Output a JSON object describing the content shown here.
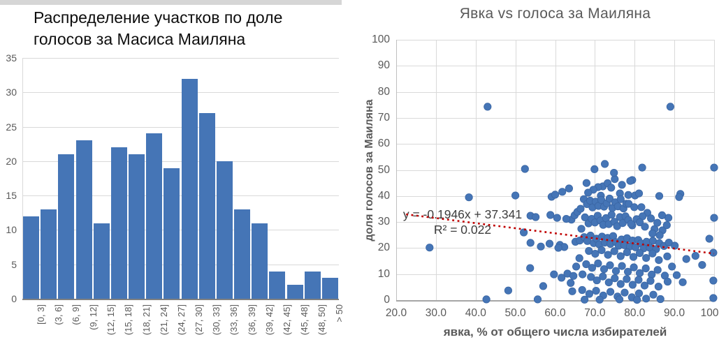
{
  "page": {
    "background": "#ffffff"
  },
  "colors": {
    "series_blue": "#4575b6",
    "point_edge": "#3a66a4",
    "gridline": "#d9d9d9",
    "axis_gray": "#808080",
    "label_gray": "#595959",
    "trend_red": "#c00000",
    "hist_title_color": "#0d0d0d"
  },
  "chart_data": [
    {
      "type": "bar",
      "title_lines": [
        "Распределение участков по доле",
        "голосов за Масиса Маиляна"
      ],
      "categories": [
        "[0, 3]",
        "(3, 6]",
        "(6, 9]",
        "(9, 12]",
        "(12, 15]",
        "(15, 18]",
        "(18, 21]",
        "(21, 24]",
        "(24, 27]",
        "(27, 30]",
        "(30, 33]",
        "(33, 36]",
        "(36, 39]",
        "(39, 42]",
        "(42, 45]",
        "(45, 48]",
        "(48, 50]",
        "> 50"
      ],
      "values": [
        12,
        13,
        21,
        23,
        11,
        22,
        21,
        24,
        19,
        32,
        27,
        20,
        13,
        11,
        4,
        2,
        4,
        3
      ],
      "xlabel": "",
      "ylabel": "",
      "y_ticks": [
        0,
        5,
        10,
        15,
        20,
        25,
        30,
        35
      ],
      "ylim": [
        0,
        35
      ],
      "grid": "horizontal",
      "legend": "none"
    },
    {
      "type": "scatter",
      "title": "Явка vs голоса за Маиляна",
      "xlabel": "явка, % от общего числа избирателей",
      "ylabel": "доля голосов за Маиляна",
      "xlim": [
        20,
        100
      ],
      "ylim": [
        0,
        100
      ],
      "x_tick_values": [
        20,
        30,
        40,
        50,
        60,
        70,
        80,
        90,
        100
      ],
      "x_tick_labels": [
        "20.0",
        "30.0",
        "40.0",
        "50.0",
        "60.0",
        "70.0",
        "80.0",
        "90.0",
        "100.0"
      ],
      "y_tick_values": [
        0,
        10,
        20,
        30,
        40,
        50,
        60,
        70,
        80,
        90,
        100
      ],
      "y_tick_labels": [
        "0",
        "10",
        "20",
        "30",
        "40",
        "50",
        "60",
        "70",
        "80",
        "90",
        "100"
      ],
      "grid": "both",
      "legend": "none",
      "trendline": {
        "equation": "y = -0,1946x + 37.341",
        "equation_display": "y = -0.1946x + 37.341",
        "r2": "R² = 0.022",
        "slope": -0.1946,
        "intercept": 37.341,
        "x_start": 22.5,
        "x_end": 100,
        "style": "dotted"
      },
      "points": [
        [
          28.4,
          20.2
        ],
        [
          38.3,
          39.5
        ],
        [
          43,
          74.3
        ],
        [
          42.7,
          0.3
        ],
        [
          48.2,
          3.7
        ],
        [
          50,
          40.2
        ],
        [
          52.4,
          50.4
        ],
        [
          52.1,
          26
        ],
        [
          53.8,
          32.4
        ],
        [
          55.1,
          31.9
        ],
        [
          53.8,
          22
        ],
        [
          53.7,
          12.3
        ],
        [
          55.6,
          0.3
        ],
        [
          57,
          5.4
        ],
        [
          56.4,
          20.6
        ],
        [
          58.8,
          32.7
        ],
        [
          58.6,
          21.7
        ],
        [
          59.1,
          39.7
        ],
        [
          59.7,
          9.9
        ],
        [
          89,
          74.3
        ],
        [
          91.5,
          40.8
        ],
        [
          91.2,
          39.6
        ],
        [
          100,
          50.9
        ],
        [
          100,
          31.6
        ],
        [
          98.8,
          23.6
        ],
        [
          99.8,
          18.2
        ],
        [
          99.8,
          7.5
        ],
        [
          99.8,
          0.8
        ],
        [
          97,
          13.5
        ],
        [
          95.3,
          17
        ],
        [
          93,
          15.8
        ],
        [
          60,
          40.5
        ],
        [
          61.8,
          41.6
        ],
        [
          63.5,
          42.9
        ],
        [
          60.5,
          31.6
        ],
        [
          61.2,
          21.2
        ],
        [
          62.3,
          20.4
        ],
        [
          63.1,
          10.2
        ],
        [
          61.6,
          8.6
        ],
        [
          63.9,
          6.6
        ],
        [
          64.6,
          9.3
        ],
        [
          64.1,
          30.9
        ],
        [
          64.9,
          32.6
        ],
        [
          65.6,
          33.9
        ],
        [
          66.4,
          35.1
        ],
        [
          65.1,
          22.4
        ],
        [
          66.1,
          16.1
        ],
        [
          65.3,
          12.9
        ],
        [
          66.9,
          9.9
        ],
        [
          64.3,
          3.4
        ],
        [
          66.6,
          27.4
        ],
        [
          66.2,
          22.9
        ],
        [
          62.8,
          31.2
        ],
        [
          60.8,
          20.1
        ],
        [
          67.9,
          45
        ],
        [
          69.9,
          50.3
        ],
        [
          72.5,
          52.3
        ],
        [
          75,
          46.5
        ],
        [
          79.4,
          46.1
        ],
        [
          78.9,
          45.8
        ],
        [
          72,
          43.7
        ],
        [
          70.8,
          43.4
        ],
        [
          69.6,
          42.4
        ],
        [
          68.3,
          41.3
        ],
        [
          71.5,
          40.1
        ],
        [
          73.2,
          44.9
        ],
        [
          74.1,
          43.2
        ],
        [
          76.3,
          41
        ],
        [
          78.4,
          40.4
        ],
        [
          80.1,
          40.2
        ],
        [
          81.1,
          41
        ],
        [
          81.9,
          50.9
        ],
        [
          86.2,
          40
        ],
        [
          74.8,
          48.9
        ],
        [
          76.8,
          44.3
        ],
        [
          67.2,
          38.8
        ],
        [
          68,
          36.9
        ],
        [
          68.8,
          38.2
        ],
        [
          69.4,
          35.6
        ],
        [
          70.2,
          37.8
        ],
        [
          70.9,
          36.2
        ],
        [
          71.6,
          38.5
        ],
        [
          72.3,
          35.9
        ],
        [
          73,
          37.2
        ],
        [
          73.7,
          39
        ],
        [
          74.4,
          35.4
        ],
        [
          75.1,
          37.6
        ],
        [
          75.8,
          36
        ],
        [
          76.5,
          38.8
        ],
        [
          77.2,
          35.2
        ],
        [
          77.9,
          37
        ],
        [
          78.5,
          37
        ],
        [
          79.9,
          35.7
        ],
        [
          81.7,
          35.7
        ],
        [
          83.2,
          33.5
        ],
        [
          82,
          32.2
        ],
        [
          88.5,
          31.6
        ],
        [
          85,
          27.3
        ],
        [
          87,
          26.8
        ],
        [
          79.4,
          28.7
        ],
        [
          67.5,
          31.8
        ],
        [
          68.4,
          29.5
        ],
        [
          69.2,
          31.2
        ],
        [
          70,
          29.8
        ],
        [
          70.7,
          32.4
        ],
        [
          71.4,
          30.6
        ],
        [
          72.1,
          28.9
        ],
        [
          72.8,
          31.5
        ],
        [
          73.5,
          29.2
        ],
        [
          74.2,
          32.8
        ],
        [
          74.9,
          30.1
        ],
        [
          75.6,
          28.4
        ],
        [
          76.3,
          31.9
        ],
        [
          77,
          29.6
        ],
        [
          77.7,
          32.2
        ],
        [
          78.4,
          30.8
        ],
        [
          79.1,
          29.3
        ],
        [
          80.5,
          31.1
        ],
        [
          81.3,
          29.9
        ],
        [
          82.6,
          28.2
        ],
        [
          84.1,
          31.4
        ],
        [
          85.7,
          29.7
        ],
        [
          86.9,
          32.6
        ],
        [
          88.1,
          28.8
        ],
        [
          84.5,
          25.6
        ],
        [
          86.3,
          24.9
        ],
        [
          67.3,
          24.2
        ],
        [
          68.1,
          22.7
        ],
        [
          68.9,
          24.8
        ],
        [
          69.7,
          21.9
        ],
        [
          70.4,
          23.6
        ],
        [
          71.1,
          21.4
        ],
        [
          71.8,
          24.4
        ],
        [
          72.5,
          22.1
        ],
        [
          73.2,
          23.9
        ],
        [
          73.9,
          21.6
        ],
        [
          74.6,
          24.6
        ],
        [
          75.3,
          22.3
        ],
        [
          76,
          20.9
        ],
        [
          76.7,
          23.3
        ],
        [
          77.4,
          21.1
        ],
        [
          78.1,
          23.8
        ],
        [
          78.8,
          20.6
        ],
        [
          79.5,
          22.9
        ],
        [
          80.2,
          20.3
        ],
        [
          80.9,
          23.1
        ],
        [
          81.6,
          21.8
        ],
        [
          82.3,
          19.9
        ],
        [
          83,
          22.4
        ],
        [
          83.8,
          20.1
        ],
        [
          84.6,
          22.8
        ],
        [
          85.4,
          19.6
        ],
        [
          86.2,
          21.9
        ],
        [
          87.4,
          20.8
        ],
        [
          88.6,
          22.1
        ],
        [
          90.1,
          20.9
        ],
        [
          68.5,
          18.9
        ],
        [
          70.1,
          17.8
        ],
        [
          71.7,
          19.2
        ],
        [
          73.3,
          17.4
        ],
        [
          74.9,
          18.8
        ],
        [
          76.5,
          16.9
        ],
        [
          78.1,
          18.4
        ],
        [
          79.7,
          16.6
        ],
        [
          81.3,
          18.1
        ],
        [
          82.9,
          16.2
        ],
        [
          84.5,
          17.9
        ],
        [
          86.1,
          15.4
        ],
        [
          88.2,
          16.8
        ],
        [
          67.8,
          13.8
        ],
        [
          69.3,
          12.4
        ],
        [
          70.8,
          14.1
        ],
        [
          72.3,
          11.9
        ],
        [
          73.8,
          13.4
        ],
        [
          75.3,
          11.2
        ],
        [
          76.8,
          13.1
        ],
        [
          78.3,
          10.9
        ],
        [
          79.8,
          12.6
        ],
        [
          81.3,
          10.4
        ],
        [
          82.8,
          12.2
        ],
        [
          84.3,
          9.8
        ],
        [
          85.8,
          11.6
        ],
        [
          87.6,
          9.4
        ],
        [
          69,
          8.9
        ],
        [
          70.5,
          7.6
        ],
        [
          72,
          9.1
        ],
        [
          73.5,
          6.8
        ],
        [
          75,
          8.4
        ],
        [
          76.5,
          6.2
        ],
        [
          78,
          8.1
        ],
        [
          79.5,
          5.9
        ],
        [
          81,
          7.8
        ],
        [
          82.5,
          5.6
        ],
        [
          84,
          7.4
        ],
        [
          86,
          5.2
        ],
        [
          88.3,
          7.1
        ],
        [
          90.6,
          9.6
        ],
        [
          92.1,
          6.9
        ],
        [
          89.4,
          12.9
        ],
        [
          66.8,
          3.9
        ],
        [
          68.6,
          2.4
        ],
        [
          70.3,
          3.6
        ],
        [
          72.1,
          1.8
        ],
        [
          73.9,
          3.2
        ],
        [
          75.7,
          1.4
        ],
        [
          77.5,
          2.9
        ],
        [
          79.3,
          1.1
        ],
        [
          81.1,
          2.6
        ],
        [
          82.9,
          0.6
        ],
        [
          84.7,
          2.1
        ],
        [
          86.5,
          0.4
        ],
        [
          67.4,
          0.2
        ],
        [
          71.2,
          0.2
        ],
        [
          76.2,
          0.3
        ],
        [
          80.6,
          0.1
        ]
      ]
    }
  ]
}
